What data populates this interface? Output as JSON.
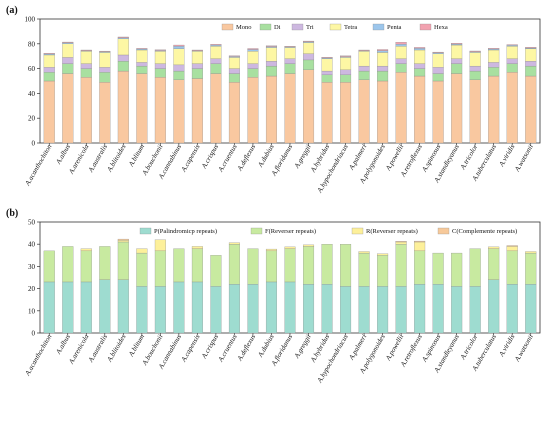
{
  "chart_data": [
    {
      "panel": "(a)",
      "type": "bar",
      "stacked": true,
      "ylim": [
        0,
        100
      ],
      "yticks": [
        0,
        20,
        40,
        60,
        80,
        100
      ],
      "legend_position": "top",
      "grid": false,
      "categories": [
        "A.acanthochiton",
        "A.albus",
        "A.arenicola",
        "A.australis",
        "A.blitoides",
        "A.blitum",
        "A.bouchonii",
        "A.cannabinus",
        "A.capensis",
        "A.crispus",
        "A.cruentus",
        "A.deflexus",
        "A.dubius",
        "A.floridanus",
        "A.greggii",
        "A.hybridus",
        "A.hypochondriacus",
        "A.palmeri",
        "A.polygonoides",
        "A.powellii",
        "A.retroflexus",
        "A.spinosus",
        "A.standleyanus",
        "A.tricolor",
        "A.tuberculatus",
        "A.viridis",
        "A.watsonii"
      ],
      "series": [
        {
          "name": "Mono",
          "color": "#f9c8a0",
          "values": [
            50,
            56,
            53,
            49,
            58,
            56,
            53,
            51,
            52,
            56,
            49,
            53,
            54,
            56,
            59,
            49,
            49,
            51,
            50,
            57,
            54,
            50,
            56,
            51,
            54,
            57,
            54
          ]
        },
        {
          "name": "Di",
          "color": "#a8e0a0",
          "values": [
            7,
            8,
            7,
            8,
            8,
            6,
            7,
            7,
            8,
            8,
            7,
            7,
            8,
            8,
            8,
            6,
            6,
            7,
            8,
            7,
            6,
            6,
            8,
            7,
            7,
            7,
            8
          ]
        },
        {
          "name": "Tri",
          "color": "#cdb8e0",
          "values": [
            4,
            5,
            4,
            4,
            5,
            3,
            4,
            5,
            4,
            4,
            4,
            4,
            4,
            4,
            5,
            3,
            4,
            4,
            4,
            4,
            4,
            5,
            4,
            4,
            4,
            4,
            4
          ]
        },
        {
          "name": "Tetra",
          "color": "#fdf7a4",
          "values": [
            10,
            11,
            10,
            12,
            13,
            10,
            10,
            13,
            10,
            10,
            9,
            10,
            11,
            9,
            9,
            10,
            10,
            12,
            11,
            10,
            11,
            11,
            11,
            11,
            10,
            10,
            10
          ]
        },
        {
          "name": "Penta",
          "color": "#9cc6ec",
          "values": [
            0.8,
            0.8,
            0.5,
            0.6,
            0.8,
            0.8,
            0.6,
            2,
            0.5,
            1,
            0.8,
            1.4,
            0.8,
            0.5,
            0.6,
            0.6,
            0.7,
            0.5,
            1.5,
            1.7,
            1.3,
            0.7,
            0.8,
            0.6,
            0.8,
            0.8,
            0.6
          ]
        },
        {
          "name": "Hexa",
          "color": "#f2a2b0",
          "values": [
            0.6,
            0.6,
            0.5,
            0.5,
            0.7,
            0.5,
            0.6,
            1,
            0.5,
            0.6,
            0.6,
            0.8,
            0.6,
            0.5,
            0.6,
            0.6,
            0.6,
            0.5,
            0.9,
            1.6,
            0.8,
            0.6,
            0.7,
            0.6,
            0.6,
            0.6,
            0.6
          ]
        }
      ]
    },
    {
      "panel": "(b)",
      "type": "bar",
      "stacked": true,
      "ylim": [
        0,
        50
      ],
      "yticks": [
        0,
        10,
        20,
        30,
        40,
        50
      ],
      "legend_position": "top",
      "grid": false,
      "categories": [
        "A.acanthochiton",
        "A.albus",
        "A.arenicola",
        "A.australis",
        "A.blitoides",
        "A.blitum",
        "A.bouchonii",
        "A.cannabinus",
        "A.capensis",
        "A.crispus",
        "A.cruentus",
        "A.deflexus",
        "A.dubius",
        "A.floridanus",
        "A.greggii",
        "A.hybridus",
        "A.hypochondriacus",
        "A.palmeri",
        "A.polygonoides",
        "A.powellii",
        "A.retroflexus",
        "A.spinosus",
        "A.standleyanus",
        "A.tricolor",
        "A.tuberculatus",
        "A.viridis",
        "A.watsonii"
      ],
      "series": [
        {
          "name": "P(Palindromicp repeats)",
          "color": "#9edcd0",
          "values": [
            23,
            23,
            23,
            24,
            24,
            21,
            21,
            23,
            23,
            21,
            22,
            22,
            23,
            23,
            22,
            22,
            21,
            21,
            21,
            21,
            22,
            22,
            21,
            21,
            24,
            22,
            22
          ]
        },
        {
          "name": "F(Reverser repeats)",
          "color": "#c8eaa0",
          "values": [
            14,
            16,
            14,
            15,
            17,
            15,
            16,
            15,
            15,
            14,
            18,
            16,
            14,
            15,
            17,
            18,
            19,
            15,
            14,
            19,
            15,
            14,
            15,
            17,
            14,
            15,
            14
          ]
        },
        {
          "name": "R(Reverser repeats)",
          "color": "#fdf09a",
          "values": [
            0,
            0,
            1,
            0,
            0.8,
            2,
            5,
            0,
            1,
            0,
            0.7,
            0,
            0.8,
            0.8,
            0.7,
            0,
            0,
            0.7,
            0.7,
            1,
            4,
            0,
            0,
            0,
            0.8,
            2,
            0.7
          ]
        },
        {
          "name": "C(Complemente repeats)",
          "color": "#f7c99a",
          "values": [
            0,
            0,
            0,
            0,
            0.5,
            0,
            0,
            0,
            0,
            0,
            0,
            0,
            0,
            0,
            0,
            0,
            0,
            0,
            0,
            0.3,
            0.4,
            0,
            0,
            0,
            0,
            0.4,
            0
          ]
        }
      ]
    }
  ]
}
